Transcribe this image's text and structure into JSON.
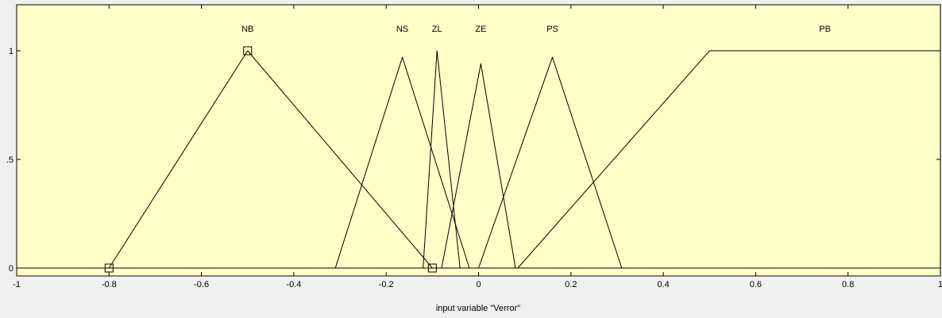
{
  "chart_data": {
    "type": "line",
    "title": "",
    "xlabel": "input variable \"Verror\"",
    "ylabel": "",
    "xlim": [
      -1,
      1
    ],
    "ylim": [
      0,
      1.05
    ],
    "x_ticks": [
      -1,
      -0.8,
      -0.6,
      -0.4,
      -0.2,
      0,
      0.2,
      0.4,
      0.6,
      0.8,
      1
    ],
    "x_tick_labels": [
      "-1",
      "-0.8",
      "-0.6",
      "-0.4",
      "-0.2",
      "0",
      "0.2",
      "0.4",
      "0.6",
      "0.8",
      "1"
    ],
    "y_ticks": [
      0,
      0.5,
      1
    ],
    "y_tick_labels": [
      "0",
      ".5",
      "1"
    ],
    "grid": false,
    "selected_series": "NB",
    "series": [
      {
        "name": "NB",
        "points": [
          [
            -1,
            0
          ],
          [
            -0.8,
            0
          ],
          [
            -0.5,
            1
          ],
          [
            -0.1,
            0
          ],
          [
            1,
            0
          ]
        ]
      },
      {
        "name": "NS",
        "points": [
          [
            -1,
            0
          ],
          [
            -0.31,
            0
          ],
          [
            -0.165,
            0.97
          ],
          [
            -0.02,
            0
          ],
          [
            1,
            0
          ]
        ]
      },
      {
        "name": "ZL",
        "points": [
          [
            -1,
            0
          ],
          [
            -0.12,
            0
          ],
          [
            -0.09,
            1
          ],
          [
            -0.04,
            0
          ],
          [
            1,
            0
          ]
        ]
      },
      {
        "name": "ZE",
        "points": [
          [
            -1,
            0
          ],
          [
            -0.08,
            0
          ],
          [
            0.005,
            0.94
          ],
          [
            0.08,
            0
          ],
          [
            1,
            0
          ]
        ]
      },
      {
        "name": "PS",
        "points": [
          [
            -1,
            0
          ],
          [
            0,
            0
          ],
          [
            0.16,
            0.97
          ],
          [
            0.31,
            0
          ],
          [
            1,
            0
          ]
        ]
      },
      {
        "name": "PB",
        "points": [
          [
            -1,
            0
          ],
          [
            0.085,
            0
          ],
          [
            0.5,
            1
          ],
          [
            1,
            1
          ]
        ]
      }
    ],
    "colors": {
      "plot_background": "#ffffc8",
      "line": "#000000",
      "figure_background": "#f0f0f0"
    }
  }
}
